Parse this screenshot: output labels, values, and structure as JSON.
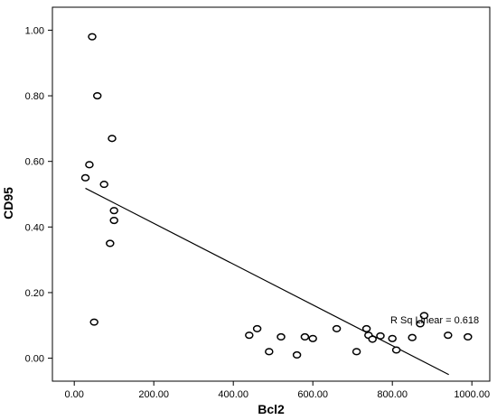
{
  "chart_data": {
    "type": "scatter",
    "xlabel": "Bcl2",
    "ylabel": "CD95",
    "xlim": [
      -55,
      1045
    ],
    "ylim": [
      -0.07,
      1.07
    ],
    "x_ticks": [
      0,
      200,
      400,
      600,
      800,
      1000
    ],
    "x_tick_labels": [
      "0.00",
      "200.00",
      "400.00",
      "600.00",
      "800.00",
      "1000.00"
    ],
    "y_ticks": [
      0,
      0.2,
      0.4,
      0.6,
      0.8,
      1.0
    ],
    "y_tick_labels": [
      "0.00",
      "0.20",
      "0.40",
      "0.60",
      "0.80",
      "1.00"
    ],
    "grid": false,
    "legend": "none",
    "fit_line": {
      "type": "linear",
      "x": [
        28,
        942
      ],
      "y": [
        0.518,
        -0.05
      ]
    },
    "annotation": "R Sq Linear = 0.618",
    "points": {
      "x": [
        45,
        58,
        95,
        38,
        28,
        75,
        100,
        100,
        90,
        50,
        440,
        460,
        490,
        520,
        560,
        580,
        600,
        660,
        710,
        735,
        740,
        750,
        770,
        800,
        810,
        850,
        870,
        880,
        940,
        990
      ],
      "y": [
        0.98,
        0.8,
        0.67,
        0.59,
        0.55,
        0.53,
        0.45,
        0.42,
        0.35,
        0.11,
        0.07,
        0.09,
        0.02,
        0.065,
        0.01,
        0.065,
        0.06,
        0.09,
        0.02,
        0.09,
        0.07,
        0.058,
        0.068,
        0.06,
        0.025,
        0.063,
        0.105,
        0.13,
        0.07,
        0.065
      ]
    }
  }
}
